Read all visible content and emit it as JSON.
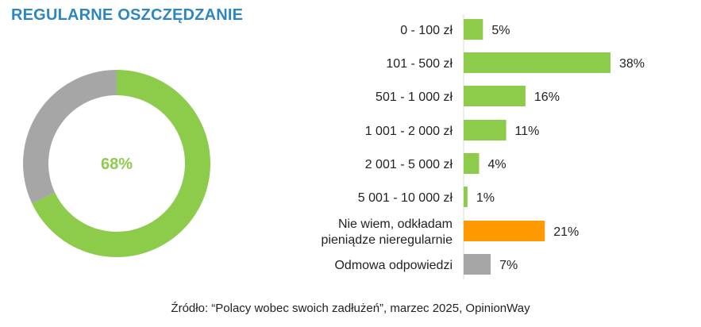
{
  "title": "REGULARNE OSZCZĘDZANIE",
  "source": "Źródło: “Polacy wobec swoich zadłużeń”, marzec 2025, OpinionWay",
  "colors": {
    "title": "#2e86c1",
    "green": "#8dcb4b",
    "gray": "#a6a6a6",
    "orange": "#ff9900"
  },
  "chart_data": [
    {
      "type": "pie",
      "variant": "donut",
      "center_label": "68%",
      "slices": [
        {
          "value": 68,
          "color": "#8dcb4b"
        },
        {
          "value": 32,
          "color": "#a6a6a6"
        }
      ]
    },
    {
      "type": "bar",
      "orientation": "horizontal",
      "categories": [
        [
          "0 - 100 zł"
        ],
        [
          "101 - 500 zł"
        ],
        [
          "501 - 1 000 zł"
        ],
        [
          "1 001 - 2 000 zł"
        ],
        [
          "2 001 - 5 000 zł"
        ],
        [
          "5 001 - 10 000 zł"
        ],
        [
          "Nie wiem, odkładam",
          "pieniądze nieregularnie"
        ],
        [
          "Odmowa odpowiedzi"
        ]
      ],
      "values": [
        5,
        38,
        16,
        11,
        4,
        1,
        21,
        7
      ],
      "value_labels": [
        "5%",
        "38%",
        "16%",
        "11%",
        "4%",
        "1%",
        "21%",
        "7%"
      ],
      "bar_colors": [
        "#8dcb4b",
        "#8dcb4b",
        "#8dcb4b",
        "#8dcb4b",
        "#8dcb4b",
        "#8dcb4b",
        "#ff9900",
        "#a6a6a6"
      ],
      "xlim": [
        0,
        38
      ],
      "grid": false,
      "legend": "none"
    }
  ]
}
